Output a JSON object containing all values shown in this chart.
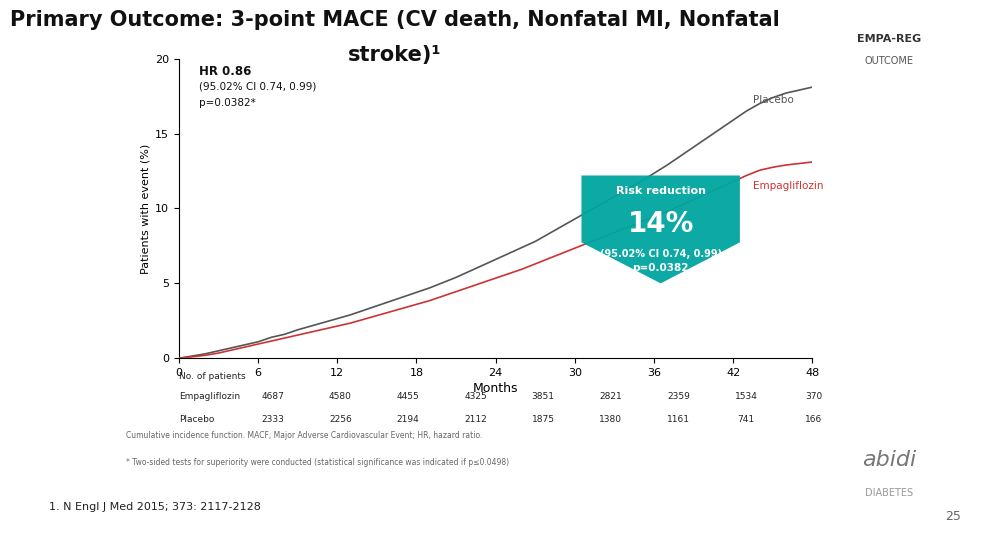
{
  "title_line1": "Primary Outcome: 3-point MACE (CV death, Nonfatal MI, Nonfatal",
  "title_line2": "stroke)¹",
  "title_fontsize": 15,
  "bg_color": "#ffffff",
  "plot_bg_color": "#ffffff",
  "xlabel": "Months",
  "ylabel": "Patients with event (%)",
  "xlim": [
    0,
    48
  ],
  "ylim": [
    0,
    20
  ],
  "xticks": [
    0,
    6,
    12,
    18,
    24,
    30,
    36,
    42,
    48
  ],
  "yticks": [
    0,
    5,
    10,
    15,
    20
  ],
  "placebo_color": "#555555",
  "empa_color": "#cc3333",
  "placebo_x": [
    0,
    1,
    2,
    3,
    4,
    5,
    6,
    7,
    8,
    9,
    10,
    11,
    12,
    13,
    14,
    15,
    16,
    17,
    18,
    19,
    20,
    21,
    22,
    23,
    24,
    25,
    26,
    27,
    28,
    29,
    30,
    31,
    32,
    33,
    34,
    35,
    36,
    37,
    38,
    39,
    40,
    41,
    42,
    43,
    44,
    45,
    46,
    47,
    48
  ],
  "placebo_y": [
    0,
    0.15,
    0.3,
    0.5,
    0.7,
    0.9,
    1.1,
    1.4,
    1.6,
    1.9,
    2.15,
    2.4,
    2.65,
    2.9,
    3.2,
    3.5,
    3.8,
    4.1,
    4.4,
    4.7,
    5.05,
    5.4,
    5.8,
    6.2,
    6.6,
    7.0,
    7.4,
    7.8,
    8.3,
    8.8,
    9.3,
    9.8,
    10.3,
    10.8,
    11.3,
    11.8,
    12.35,
    12.9,
    13.5,
    14.1,
    14.7,
    15.3,
    15.9,
    16.5,
    17.0,
    17.4,
    17.7,
    17.9,
    18.1
  ],
  "empa_x": [
    0,
    1,
    2,
    3,
    4,
    5,
    6,
    7,
    8,
    9,
    10,
    11,
    12,
    13,
    14,
    15,
    16,
    17,
    18,
    19,
    20,
    21,
    22,
    23,
    24,
    25,
    26,
    27,
    28,
    29,
    30,
    31,
    32,
    33,
    34,
    35,
    36,
    37,
    38,
    39,
    40,
    41,
    42,
    43,
    44,
    45,
    46,
    47,
    48
  ],
  "empa_y": [
    0,
    0.1,
    0.2,
    0.35,
    0.55,
    0.75,
    0.95,
    1.15,
    1.35,
    1.55,
    1.75,
    1.95,
    2.15,
    2.35,
    2.6,
    2.85,
    3.1,
    3.35,
    3.6,
    3.85,
    4.15,
    4.45,
    4.75,
    5.05,
    5.35,
    5.65,
    5.95,
    6.3,
    6.65,
    7.0,
    7.35,
    7.7,
    8.05,
    8.4,
    8.75,
    9.1,
    9.45,
    9.8,
    10.2,
    10.6,
    11.0,
    11.4,
    11.8,
    12.2,
    12.55,
    12.75,
    12.9,
    13.0,
    13.1
  ],
  "hr_text": "HR 0.86",
  "ci_text": "(95.02% CI 0.74, 0.99)",
  "p_text": "p=0.0382*",
  "risk_box_color": "#00a6a0",
  "risk_reduction_pct": "14%",
  "risk_ci_text": "(95.02% CI 0.74, 0.99)",
  "risk_p_text": "p=0.0382",
  "no_patients_header": "No. of patients",
  "empa_label": "Empagliflozin",
  "placebo_label": "Placebo",
  "empa_counts": [
    "4687",
    "4580",
    "4455",
    "4325",
    "3851",
    "2821",
    "2359",
    "1534",
    "370"
  ],
  "placebo_counts": [
    "2333",
    "2256",
    "2194",
    "2112",
    "1875",
    "1380",
    "1161",
    "741",
    "166"
  ],
  "footnote1": "Cumulative incidence function. MACF, Major Adverse Cardiovascular Event; HR, hazard ratio.",
  "footnote2": "* Two-sided tests for superiority were conducted (statistical significance was indicated if p≤0.0498)",
  "footer_ref": "1. N Engl J Med 2015; 373: 2117-2128",
  "page_num": "25",
  "empareg_line1": "EMPA-REG",
  "empareg_line2": "OUTCOME",
  "abidi_text": "abidi",
  "diabetes_text": "DIABETES"
}
